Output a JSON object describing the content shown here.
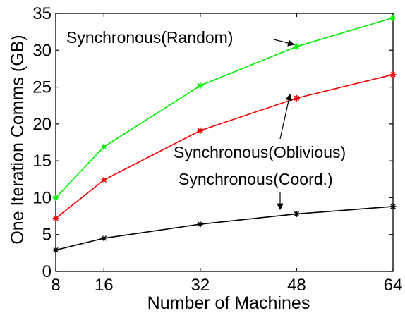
{
  "chart_data": {
    "type": "line",
    "title": "",
    "xlabel": "Number of Machines",
    "ylabel": "One Iteration Comms (GB)",
    "x": [
      8,
      16,
      32,
      48,
      64
    ],
    "xlim": [
      8,
      64
    ],
    "ylim": [
      0,
      35
    ],
    "xticks": [
      "8",
      "16",
      "32",
      "48",
      "64"
    ],
    "yticks": [
      "0",
      "5",
      "10",
      "15",
      "20",
      "25",
      "30",
      "35"
    ],
    "grid": false,
    "series": [
      {
        "name": "Synchronous(Random)",
        "color": "#00ee00",
        "marker": "asterisk",
        "values": [
          10.0,
          16.9,
          25.2,
          30.5,
          34.4
        ]
      },
      {
        "name": "Synchronous(Oblivious)",
        "color": "#ee0000",
        "marker": "asterisk",
        "values": [
          7.2,
          12.4,
          19.1,
          23.5,
          26.7
        ]
      },
      {
        "name": "Synchronous(Coord.)",
        "color": "#000000",
        "marker": "asterisk",
        "values": [
          2.9,
          4.5,
          6.4,
          7.8,
          8.8
        ]
      }
    ],
    "annotations": [
      {
        "text": "Synchronous(Random)",
        "series": 0
      },
      {
        "text": "Synchronous(Oblivious)",
        "series": 1
      },
      {
        "text": "Synchronous(Coord.)",
        "series": 2
      }
    ]
  }
}
